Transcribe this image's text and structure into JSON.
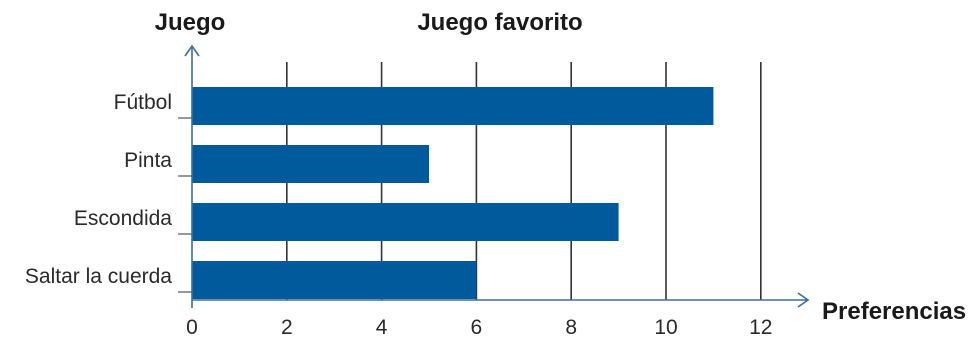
{
  "chart_data": {
    "type": "bar",
    "orientation": "horizontal",
    "title": "Juego favorito",
    "ylabel": "Juego",
    "xlabel": "Preferencias",
    "categories": [
      "Fútbol",
      "Pinta",
      "Escondida",
      "Saltar la cuerda"
    ],
    "values": [
      11,
      5,
      9,
      6
    ],
    "xlim": [
      0,
      12
    ],
    "xticks": [
      "0",
      "2",
      "4",
      "6",
      "8",
      "10",
      "12"
    ],
    "grid": true,
    "legend": "none",
    "colors": {
      "bar": "#005a9c",
      "axis": "#3a6f9c",
      "grid": "#333333"
    }
  }
}
